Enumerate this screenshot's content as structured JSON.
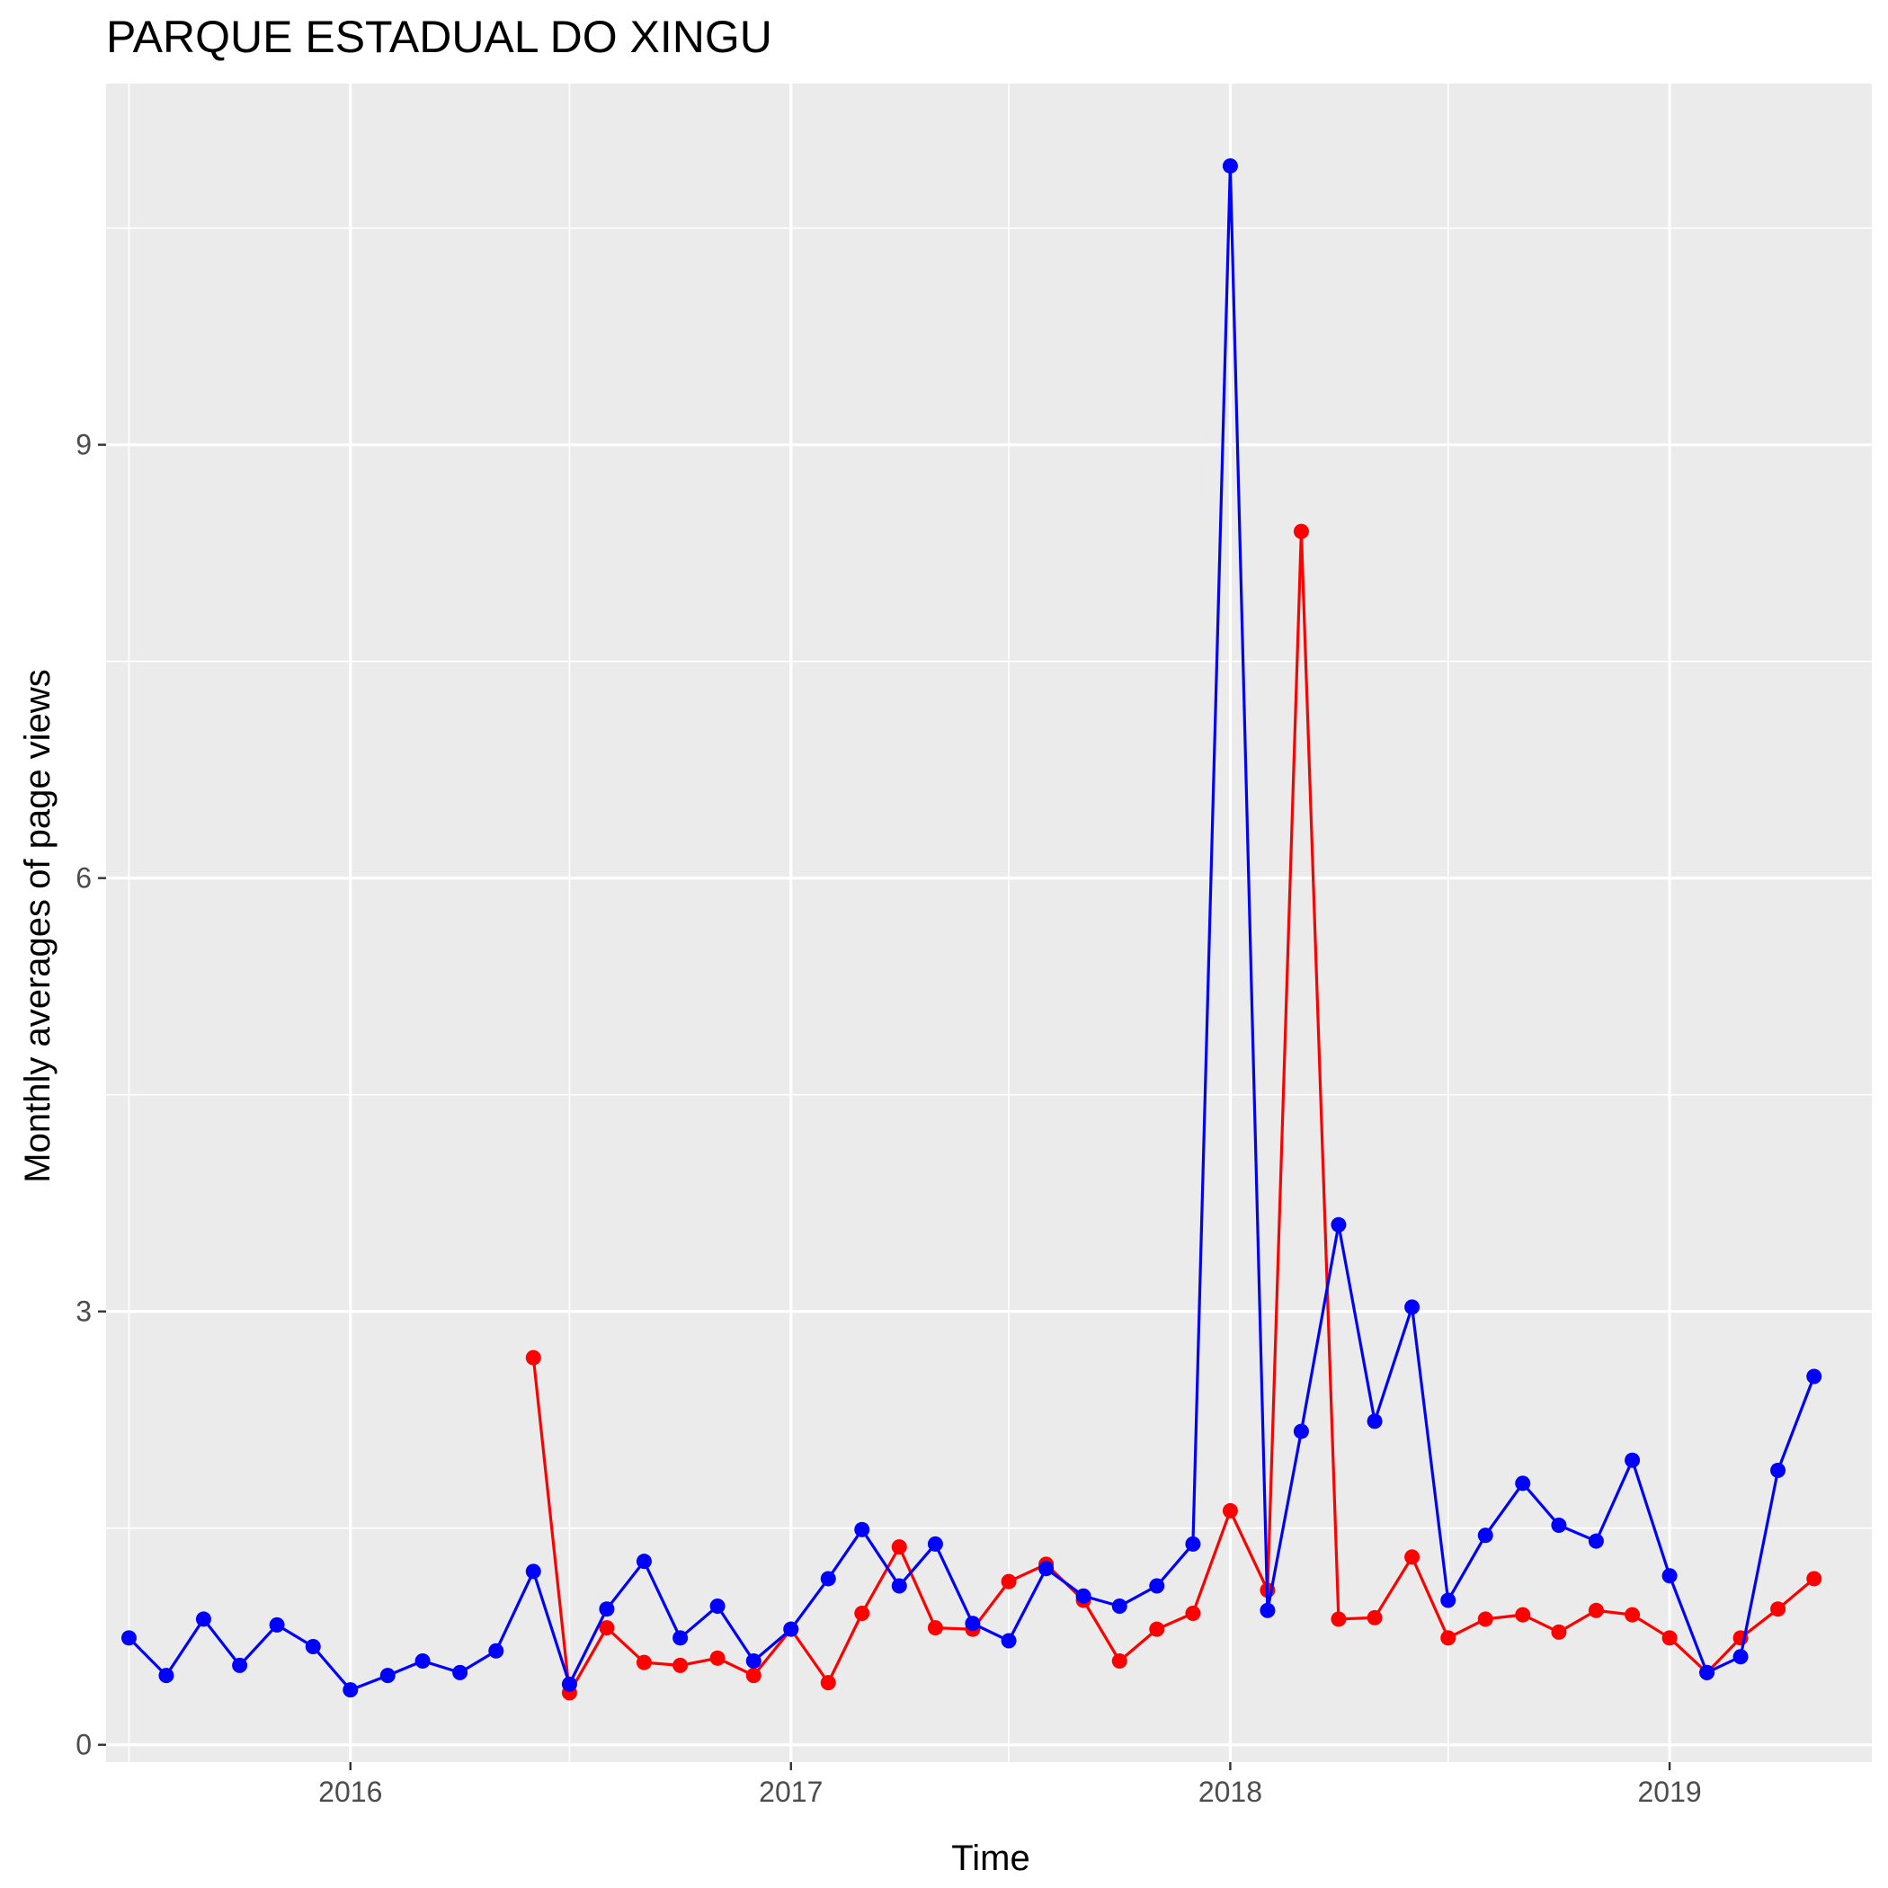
{
  "chart_data": {
    "type": "line",
    "title": "PARQUE ESTADUAL DO XINGU",
    "xlabel": "Time",
    "ylabel": "Monthly averages of page views",
    "x_ticks": [
      "2016",
      "2017",
      "2018",
      "2019"
    ],
    "y_ticks": [
      "0",
      "3",
      "6",
      "9"
    ],
    "xlim": [
      "2015-06-12",
      "2019-06-18"
    ],
    "ylim": [
      -0.12,
      11.5
    ],
    "panel_background": "#ebebeb",
    "grid": true,
    "grid_color": "#ffffff",
    "legend": "none",
    "series": [
      {
        "color": "#ff0000",
        "x": [
          "2016-06-01",
          "2016-07-01",
          "2016-08-01",
          "2016-09-01",
          "2016-10-01",
          "2016-11-01",
          "2016-12-01",
          "2017-01-01",
          "2017-02-01",
          "2017-03-01",
          "2017-04-01",
          "2017-05-01",
          "2017-06-01",
          "2017-07-01",
          "2017-08-01",
          "2017-09-01",
          "2017-10-01",
          "2017-11-01",
          "2017-12-01",
          "2018-01-01",
          "2018-02-01",
          "2018-03-01",
          "2018-04-01",
          "2018-05-01",
          "2018-06-01",
          "2018-07-01",
          "2018-08-01",
          "2018-09-01",
          "2018-10-01",
          "2018-11-01",
          "2018-12-01",
          "2019-01-01",
          "2019-02-01",
          "2019-03-01",
          "2019-04-01",
          "2019-05-01"
        ],
        "values": [
          2.68,
          0.36,
          0.81,
          0.57,
          0.55,
          0.6,
          0.48,
          0.8,
          0.43,
          0.91,
          1.37,
          0.81,
          0.8,
          1.13,
          1.25,
          1.0,
          0.58,
          0.8,
          0.91,
          1.62,
          1.07,
          8.4,
          0.87,
          0.88,
          1.3,
          0.74,
          0.87,
          0.9,
          0.78,
          0.93,
          0.9,
          0.74,
          0.5,
          0.74,
          0.94,
          1.15
        ]
      },
      {
        "color": "#0000ff",
        "x": [
          "2015-07-01",
          "2015-08-01",
          "2015-09-01",
          "2015-10-01",
          "2015-11-01",
          "2015-12-01",
          "2016-01-01",
          "2016-02-01",
          "2016-03-01",
          "2016-04-01",
          "2016-05-01",
          "2016-06-01",
          "2016-07-01",
          "2016-08-01",
          "2016-09-01",
          "2016-10-01",
          "2016-11-01",
          "2016-12-01",
          "2017-01-01",
          "2017-02-01",
          "2017-03-01",
          "2017-04-01",
          "2017-05-01",
          "2017-06-01",
          "2017-07-01",
          "2017-08-01",
          "2017-09-01",
          "2017-10-01",
          "2017-11-01",
          "2017-12-01",
          "2018-01-01",
          "2018-02-01",
          "2018-03-01",
          "2018-04-01",
          "2018-05-01",
          "2018-06-01",
          "2018-07-01",
          "2018-08-01",
          "2018-09-01",
          "2018-10-01",
          "2018-11-01",
          "2018-12-01",
          "2019-01-01",
          "2019-02-01",
          "2019-03-01",
          "2019-04-01",
          "2019-05-01"
        ],
        "values": [
          0.74,
          0.48,
          0.87,
          0.55,
          0.83,
          0.68,
          0.38,
          0.48,
          0.58,
          0.5,
          0.65,
          1.2,
          0.42,
          0.94,
          1.27,
          0.74,
          0.96,
          0.58,
          0.8,
          1.15,
          1.49,
          1.1,
          1.39,
          0.84,
          0.72,
          1.22,
          1.03,
          0.96,
          1.1,
          1.39,
          10.93,
          0.93,
          2.17,
          3.6,
          2.24,
          3.03,
          1.0,
          1.45,
          1.81,
          1.52,
          1.41,
          1.97,
          1.17,
          0.5,
          0.61,
          1.9,
          2.55
        ]
      }
    ]
  }
}
